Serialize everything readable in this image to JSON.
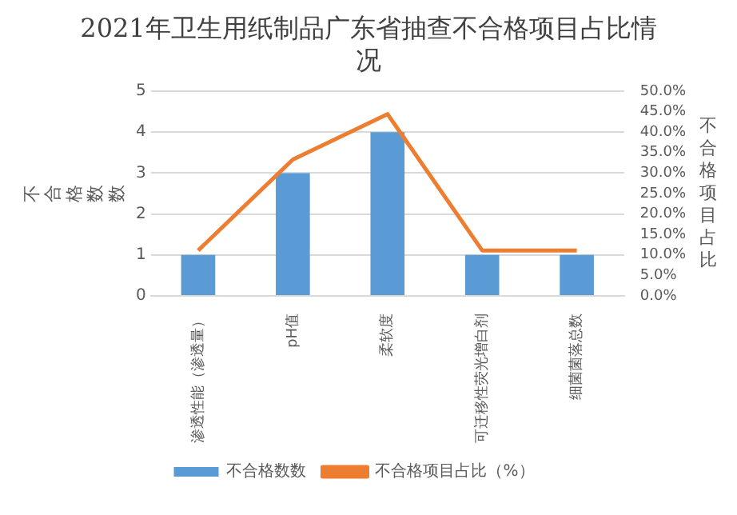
{
  "chart_data": {
    "type": "bar",
    "title": "2021年卫生用纸制品广东省抽查不合格项目占比情况",
    "ylabel": "不合格数数",
    "y2label": "不合格项目占比",
    "categories": [
      "渗透性能（渗透量）",
      "pH值",
      "柔软度",
      "可迁移性荧光增白剂",
      "细菌菌落总数"
    ],
    "series": [
      {
        "name": "不合格数数",
        "color": "#5b9bd5",
        "values": [
          1,
          3,
          4,
          1,
          1
        ]
      },
      {
        "name": "不合格项目占比（%）",
        "type": "line",
        "axis": "y2",
        "color": "#ed7d31",
        "values": [
          11.1,
          33.3,
          44.4,
          11.1,
          11.1
        ]
      }
    ],
    "ylim": [
      0,
      5
    ],
    "yticks": [
      0,
      1,
      2,
      3,
      4,
      5
    ],
    "y2lim": [
      0,
      50
    ],
    "y2ticks": [
      {
        "value": 0,
        "label": "0.0%"
      },
      {
        "value": 5,
        "label": "5.0%"
      },
      {
        "value": 10,
        "label": "10.0%"
      },
      {
        "value": 15,
        "label": "15.0%"
      },
      {
        "value": 20,
        "label": "20.0%"
      },
      {
        "value": 25,
        "label": "25.0%"
      },
      {
        "value": 30,
        "label": "30.0%"
      },
      {
        "value": 35,
        "label": "35.0%"
      },
      {
        "value": 40,
        "label": "40.0%"
      },
      {
        "value": 45,
        "label": "45.0%"
      },
      {
        "value": 50,
        "label": "50.0%"
      }
    ],
    "grid": "y",
    "legend": "bottom",
    "marker": "none"
  }
}
